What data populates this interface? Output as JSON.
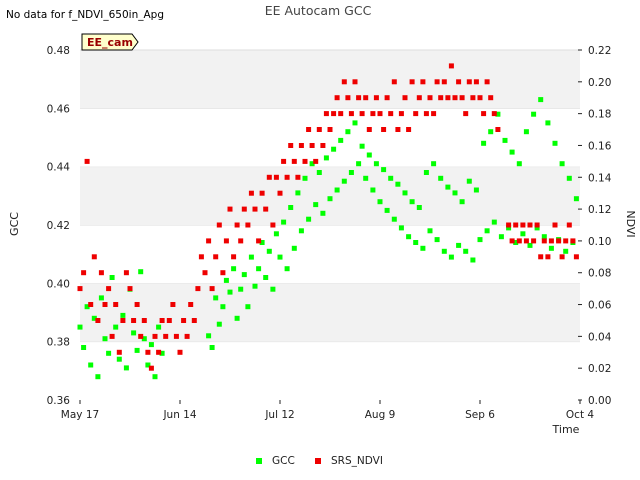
{
  "no_data_note": "No data for f_NDVI_650in_Apg",
  "chart_data": {
    "type": "scatter",
    "title": "EE Autocam GCC",
    "site_label": "EE_cam",
    "xlabel": "Time",
    "ylabel_left": "GCC",
    "ylabel_right": "NDVI",
    "x_tick_labels": [
      "May 17",
      "Jun 14",
      "Jul 12",
      "Aug 9",
      "Sep 6",
      "Oct 4"
    ],
    "x_tick_days": [
      0,
      28,
      56,
      84,
      112,
      140
    ],
    "xlim_days": [
      0,
      140
    ],
    "ylim_left": [
      0.36,
      0.48
    ],
    "y_ticks_left": [
      "0.36",
      "0.38",
      "0.40",
      "0.42",
      "0.44",
      "0.46",
      "0.48"
    ],
    "ylim_right": [
      0.0,
      0.22
    ],
    "y_ticks_right": [
      "0.00",
      "0.02",
      "0.04",
      "0.06",
      "0.08",
      "0.10",
      "0.12",
      "0.14",
      "0.16",
      "0.18",
      "0.20",
      "0.22"
    ],
    "legend_position": "bottom-center",
    "grid_bands": true,
    "series": [
      {
        "name": "GCC",
        "color": "#00ff00",
        "axis": "left",
        "points": [
          [
            0,
            0.385
          ],
          [
            1,
            0.378
          ],
          [
            2,
            0.392
          ],
          [
            3,
            0.372
          ],
          [
            4,
            0.388
          ],
          [
            5,
            0.368
          ],
          [
            6,
            0.395
          ],
          [
            7,
            0.381
          ],
          [
            8,
            0.376
          ],
          [
            9,
            0.402
          ],
          [
            10,
            0.385
          ],
          [
            11,
            0.374
          ],
          [
            12,
            0.389
          ],
          [
            13,
            0.371
          ],
          [
            14,
            0.398
          ],
          [
            15,
            0.383
          ],
          [
            16,
            0.377
          ],
          [
            17,
            0.404
          ],
          [
            18,
            0.381
          ],
          [
            19,
            0.372
          ],
          [
            20,
            0.379
          ],
          [
            21,
            0.368
          ],
          [
            22,
            0.385
          ],
          [
            23,
            0.376
          ],
          [
            36,
            0.382
          ],
          [
            37,
            0.378
          ],
          [
            38,
            0.395
          ],
          [
            39,
            0.386
          ],
          [
            40,
            0.392
          ],
          [
            41,
            0.401
          ],
          [
            42,
            0.397
          ],
          [
            43,
            0.405
          ],
          [
            44,
            0.388
          ],
          [
            45,
            0.398
          ],
          [
            46,
            0.403
          ],
          [
            47,
            0.392
          ],
          [
            48,
            0.409
          ],
          [
            49,
            0.399
          ],
          [
            50,
            0.405
          ],
          [
            51,
            0.414
          ],
          [
            52,
            0.402
          ],
          [
            53,
            0.411
          ],
          [
            54,
            0.398
          ],
          [
            55,
            0.417
          ],
          [
            56,
            0.409
          ],
          [
            57,
            0.421
          ],
          [
            58,
            0.405
          ],
          [
            59,
            0.426
          ],
          [
            60,
            0.412
          ],
          [
            61,
            0.431
          ],
          [
            62,
            0.418
          ],
          [
            63,
            0.436
          ],
          [
            64,
            0.422
          ],
          [
            65,
            0.441
          ],
          [
            66,
            0.427
          ],
          [
            67,
            0.438
          ],
          [
            68,
            0.424
          ],
          [
            69,
            0.443
          ],
          [
            70,
            0.429
          ],
          [
            71,
            0.446
          ],
          [
            72,
            0.432
          ],
          [
            73,
            0.449
          ],
          [
            74,
            0.435
          ],
          [
            75,
            0.452
          ],
          [
            76,
            0.438
          ],
          [
            77,
            0.455
          ],
          [
            78,
            0.441
          ],
          [
            79,
            0.447
          ],
          [
            80,
            0.436
          ],
          [
            81,
            0.444
          ],
          [
            82,
            0.432
          ],
          [
            83,
            0.441
          ],
          [
            84,
            0.428
          ],
          [
            85,
            0.439
          ],
          [
            86,
            0.425
          ],
          [
            87,
            0.436
          ],
          [
            88,
            0.422
          ],
          [
            89,
            0.434
          ],
          [
            90,
            0.419
          ],
          [
            91,
            0.431
          ],
          [
            92,
            0.416
          ],
          [
            93,
            0.428
          ],
          [
            94,
            0.414
          ],
          [
            95,
            0.426
          ],
          [
            96,
            0.412
          ],
          [
            97,
            0.438
          ],
          [
            98,
            0.418
          ],
          [
            99,
            0.441
          ],
          [
            100,
            0.415
          ],
          [
            101,
            0.436
          ],
          [
            102,
            0.411
          ],
          [
            103,
            0.433
          ],
          [
            104,
            0.409
          ],
          [
            105,
            0.431
          ],
          [
            106,
            0.413
          ],
          [
            107,
            0.428
          ],
          [
            108,
            0.411
          ],
          [
            109,
            0.435
          ],
          [
            110,
            0.408
          ],
          [
            111,
            0.432
          ],
          [
            112,
            0.415
          ],
          [
            113,
            0.448
          ],
          [
            114,
            0.418
          ],
          [
            115,
            0.452
          ],
          [
            116,
            0.421
          ],
          [
            117,
            0.458
          ],
          [
            118,
            0.416
          ],
          [
            119,
            0.449
          ],
          [
            120,
            0.419
          ],
          [
            121,
            0.445
          ],
          [
            122,
            0.414
          ],
          [
            123,
            0.441
          ],
          [
            124,
            0.417
          ],
          [
            125,
            0.452
          ],
          [
            126,
            0.413
          ],
          [
            127,
            0.458
          ],
          [
            128,
            0.419
          ],
          [
            129,
            0.463
          ],
          [
            130,
            0.416
          ],
          [
            131,
            0.455
          ],
          [
            132,
            0.412
          ],
          [
            133,
            0.448
          ],
          [
            134,
            0.415
          ],
          [
            135,
            0.441
          ],
          [
            136,
            0.411
          ],
          [
            137,
            0.436
          ],
          [
            138,
            0.414
          ],
          [
            139,
            0.429
          ]
        ]
      },
      {
        "name": "SRS_NDVI",
        "color": "#ee0000",
        "axis": "right",
        "points": [
          [
            0,
            0.07
          ],
          [
            1,
            0.08
          ],
          [
            2,
            0.15
          ],
          [
            3,
            0.06
          ],
          [
            4,
            0.09
          ],
          [
            5,
            0.05
          ],
          [
            6,
            0.08
          ],
          [
            7,
            0.06
          ],
          [
            8,
            0.07
          ],
          [
            9,
            0.04
          ],
          [
            10,
            0.06
          ],
          [
            11,
            0.03
          ],
          [
            12,
            0.05
          ],
          [
            13,
            0.08
          ],
          [
            14,
            0.07
          ],
          [
            15,
            0.05
          ],
          [
            16,
            0.06
          ],
          [
            17,
            0.04
          ],
          [
            18,
            0.05
          ],
          [
            19,
            0.03
          ],
          [
            20,
            0.02
          ],
          [
            21,
            0.04
          ],
          [
            22,
            0.03
          ],
          [
            23,
            0.05
          ],
          [
            24,
            0.04
          ],
          [
            25,
            0.05
          ],
          [
            26,
            0.06
          ],
          [
            27,
            0.04
          ],
          [
            28,
            0.03
          ],
          [
            29,
            0.05
          ],
          [
            30,
            0.04
          ],
          [
            31,
            0.06
          ],
          [
            32,
            0.05
          ],
          [
            33,
            0.07
          ],
          [
            34,
            0.09
          ],
          [
            35,
            0.08
          ],
          [
            36,
            0.1
          ],
          [
            37,
            0.07
          ],
          [
            38,
            0.09
          ],
          [
            39,
            0.11
          ],
          [
            40,
            0.08
          ],
          [
            41,
            0.1
          ],
          [
            42,
            0.12
          ],
          [
            43,
            0.09
          ],
          [
            44,
            0.11
          ],
          [
            45,
            0.1
          ],
          [
            46,
            0.12
          ],
          [
            47,
            0.11
          ],
          [
            48,
            0.13
          ],
          [
            49,
            0.12
          ],
          [
            50,
            0.1
          ],
          [
            51,
            0.13
          ],
          [
            52,
            0.12
          ],
          [
            53,
            0.14
          ],
          [
            54,
            0.11
          ],
          [
            55,
            0.14
          ],
          [
            56,
            0.13
          ],
          [
            57,
            0.15
          ],
          [
            58,
            0.14
          ],
          [
            59,
            0.16
          ],
          [
            60,
            0.15
          ],
          [
            61,
            0.14
          ],
          [
            62,
            0.16
          ],
          [
            63,
            0.15
          ],
          [
            64,
            0.17
          ],
          [
            65,
            0.16
          ],
          [
            66,
            0.15
          ],
          [
            67,
            0.17
          ],
          [
            68,
            0.16
          ],
          [
            69,
            0.18
          ],
          [
            70,
            0.17
          ],
          [
            71,
            0.18
          ],
          [
            72,
            0.19
          ],
          [
            73,
            0.18
          ],
          [
            74,
            0.2
          ],
          [
            75,
            0.19
          ],
          [
            76,
            0.18
          ],
          [
            77,
            0.2
          ],
          [
            78,
            0.19
          ],
          [
            79,
            0.18
          ],
          [
            80,
            0.19
          ],
          [
            81,
            0.17
          ],
          [
            82,
            0.18
          ],
          [
            83,
            0.19
          ],
          [
            84,
            0.18
          ],
          [
            85,
            0.17
          ],
          [
            86,
            0.19
          ],
          [
            87,
            0.18
          ],
          [
            88,
            0.2
          ],
          [
            89,
            0.17
          ],
          [
            90,
            0.18
          ],
          [
            91,
            0.19
          ],
          [
            92,
            0.17
          ],
          [
            93,
            0.2
          ],
          [
            94,
            0.18
          ],
          [
            95,
            0.19
          ],
          [
            96,
            0.2
          ],
          [
            97,
            0.18
          ],
          [
            98,
            0.19
          ],
          [
            99,
            0.18
          ],
          [
            100,
            0.2
          ],
          [
            101,
            0.19
          ],
          [
            102,
            0.2
          ],
          [
            103,
            0.19
          ],
          [
            104,
            0.21
          ],
          [
            105,
            0.19
          ],
          [
            106,
            0.2
          ],
          [
            107,
            0.19
          ],
          [
            108,
            0.18
          ],
          [
            109,
            0.2
          ],
          [
            110,
            0.19
          ],
          [
            111,
            0.2
          ],
          [
            112,
            0.19
          ],
          [
            113,
            0.18
          ],
          [
            114,
            0.2
          ],
          [
            115,
            0.19
          ],
          [
            116,
            0.18
          ],
          [
            117,
            0.17
          ],
          [
            120,
            0.11
          ],
          [
            121,
            0.1
          ],
          [
            122,
            0.11
          ],
          [
            123,
            0.1
          ],
          [
            124,
            0.11
          ],
          [
            125,
            0.1
          ],
          [
            126,
            0.11
          ],
          [
            127,
            0.1
          ],
          [
            128,
            0.11
          ],
          [
            129,
            0.09
          ],
          [
            130,
            0.1
          ],
          [
            131,
            0.09
          ],
          [
            132,
            0.1
          ],
          [
            133,
            0.11
          ],
          [
            134,
            0.1
          ],
          [
            135,
            0.09
          ],
          [
            136,
            0.1
          ],
          [
            137,
            0.11
          ],
          [
            138,
            0.1
          ],
          [
            139,
            0.09
          ]
        ]
      }
    ]
  }
}
